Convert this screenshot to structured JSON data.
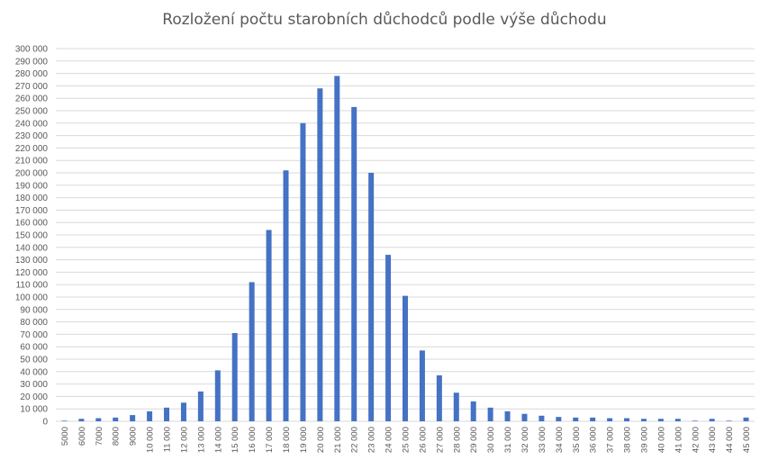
{
  "chart_data": {
    "type": "bar",
    "title": "Rozložení počtu starobních důchodců podle výše důchodu",
    "xlabel": "",
    "ylabel": "",
    "ylim": [
      0,
      300000
    ],
    "y_tick_step": 10000,
    "y_tick_labels": [
      "0",
      "10 000",
      "20 000",
      "30 000",
      "40 000",
      "50 000",
      "60 000",
      "70 000",
      "80 000",
      "90 000",
      "100 000",
      "110 000",
      "120 000",
      "130 000",
      "140 000",
      "150 000",
      "160 000",
      "170 000",
      "180 000",
      "190 000",
      "200 000",
      "210 000",
      "220 000",
      "230 000",
      "240 000",
      "250 000",
      "260 000",
      "270 000",
      "280 000",
      "290 000",
      "300 000"
    ],
    "grid": true,
    "legend": "none",
    "bar_color": "#4472c4",
    "categories": [
      "5000",
      "6000",
      "7000",
      "8000",
      "9000",
      "10 000",
      "11 000",
      "12 000",
      "13 000",
      "14 000",
      "15 000",
      "16 000",
      "17 000",
      "18 000",
      "19 000",
      "20 000",
      "21 000",
      "22 000",
      "23 000",
      "24 000",
      "25 000",
      "26 000",
      "27 000",
      "28 000",
      "29 000",
      "30 000",
      "31 000",
      "32 000",
      "33 000",
      "34 000",
      "35 000",
      "36 000",
      "37 000",
      "38 000",
      "39 000",
      "40 000",
      "41 000",
      "42 000",
      "43 000",
      "44 000",
      "45 000"
    ],
    "values": [
      500,
      2000,
      2500,
      3000,
      5000,
      8000,
      11000,
      15000,
      24000,
      41000,
      71000,
      112000,
      154000,
      202000,
      240000,
      268000,
      278000,
      253000,
      200000,
      134000,
      101000,
      57000,
      37000,
      23000,
      16000,
      11000,
      8000,
      6000,
      4500,
      3500,
      3000,
      3000,
      2500,
      2500,
      2000,
      2000,
      2000,
      500,
      2000,
      500,
      3000
    ]
  }
}
